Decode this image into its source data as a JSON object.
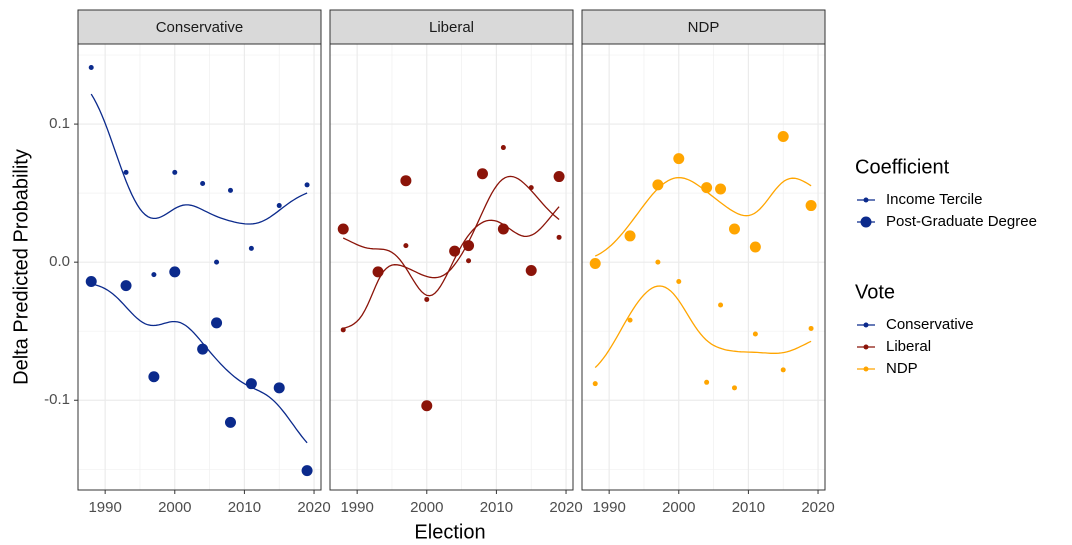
{
  "y_label": "Delta Predicted Probability",
  "x_label": "Election",
  "legend_coefficient_title": "Coefficient",
  "legend_vote_title": "Vote",
  "chart_data": [
    {
      "type": "scatter",
      "strip": "Conservative",
      "color": "#0b2a8c",
      "x": [
        1988,
        1993,
        1997,
        2000,
        2004,
        2006,
        2008,
        2011,
        2015,
        2019
      ],
      "series": [
        {
          "name": "Income Tercile",
          "values": [
            0.141,
            0.065,
            -0.009,
            0.065,
            0.057,
            0.0,
            0.052,
            0.01,
            0.041,
            0.056
          ]
        },
        {
          "name": "Post-Graduate Degree",
          "values": [
            -0.014,
            -0.017,
            -0.083,
            -0.007,
            -0.063,
            -0.044,
            -0.116,
            -0.088,
            -0.091,
            -0.151
          ]
        }
      ],
      "xlim": [
        1986.1,
        2021
      ],
      "xticks": [
        1990,
        2000,
        2010,
        2020
      ],
      "ylim": [
        -0.165,
        0.158
      ],
      "yticks": [
        -0.1,
        {
          "value": 0,
          "label": "0.0"
        },
        0.1
      ],
      "grid": true
    },
    {
      "type": "scatter",
      "strip": "Liberal",
      "color": "#8b1409",
      "x": [
        1988,
        1993,
        1997,
        2000,
        2004,
        2006,
        2008,
        2011,
        2015,
        2019
      ],
      "series": [
        {
          "name": "Income Tercile",
          "values": [
            -0.049,
            null,
            0.012,
            -0.027,
            null,
            0.001,
            null,
            0.083,
            0.054,
            0.018
          ]
        },
        {
          "name": "Post-Graduate Degree",
          "values": [
            0.024,
            -0.007,
            0.059,
            -0.104,
            0.008,
            0.012,
            0.064,
            0.024,
            -0.006,
            0.062
          ]
        }
      ],
      "xlim": [
        1986.1,
        2021
      ],
      "xticks": [
        1990,
        2000,
        2010,
        2020
      ],
      "ylim": [
        -0.165,
        0.158
      ],
      "yticks": [
        -0.1,
        {
          "value": 0,
          "label": "0.0"
        },
        0.1
      ],
      "grid": true
    },
    {
      "type": "scatter",
      "strip": "NDP",
      "color": "#ffa500",
      "x": [
        1988,
        1993,
        1997,
        2000,
        2004,
        2006,
        2008,
        2011,
        2015,
        2019
      ],
      "series": [
        {
          "name": "Income Tercile",
          "values": [
            -0.088,
            -0.042,
            0.0,
            -0.014,
            -0.087,
            -0.031,
            -0.091,
            -0.052,
            -0.078,
            -0.048
          ]
        },
        {
          "name": "Post-Graduate Degree",
          "values": [
            -0.001,
            0.019,
            0.056,
            0.075,
            0.054,
            0.053,
            0.024,
            0.011,
            0.091,
            0.041
          ]
        }
      ],
      "xlim": [
        1986.1,
        2021
      ],
      "xticks": [
        1990,
        2000,
        2010,
        2020
      ],
      "ylim": [
        -0.165,
        0.158
      ],
      "yticks": [
        -0.1,
        {
          "value": 0,
          "label": "0.0"
        },
        0.1
      ],
      "grid": true
    }
  ]
}
